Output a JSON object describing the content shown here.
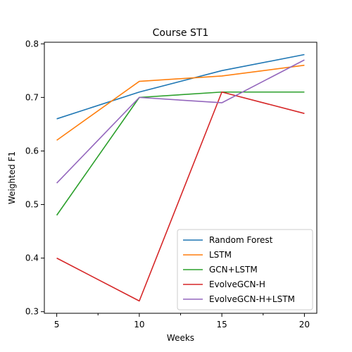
{
  "chart_data": {
    "type": "line",
    "title": "Course ST1",
    "xlabel": "Weeks",
    "ylabel": "Weighted F1",
    "x": [
      5,
      10,
      15,
      20
    ],
    "xlim": [
      4.25,
      20.75
    ],
    "ylim": [
      0.297,
      0.803
    ],
    "xticks": [
      5,
      10,
      15,
      20
    ],
    "xticks_minor": [
      7.5,
      12.5,
      17.5
    ],
    "yticks": [
      0.3,
      0.4,
      0.5,
      0.6,
      0.7,
      0.8
    ],
    "ytick_labels": [
      "0.3",
      "0.4",
      "0.5",
      "0.6",
      "0.7",
      "0.8"
    ],
    "grid": false,
    "legend_position": "lower-right",
    "series": [
      {
        "name": "Random Forest",
        "color": "#1f77b4",
        "values": [
          0.66,
          0.71,
          0.75,
          0.78
        ]
      },
      {
        "name": "LSTM",
        "color": "#ff7f0e",
        "values": [
          0.62,
          0.73,
          0.74,
          0.76
        ]
      },
      {
        "name": "GCN+LSTM",
        "color": "#2ca02c",
        "values": [
          0.48,
          0.7,
          0.71,
          0.71
        ]
      },
      {
        "name": "EvolveGCN-H",
        "color": "#d62728",
        "values": [
          0.4,
          0.32,
          0.71,
          0.67
        ]
      },
      {
        "name": "EvolveGCN-H+LSTM",
        "color": "#9467bd",
        "values": [
          0.54,
          0.7,
          0.69,
          0.77
        ]
      }
    ]
  }
}
